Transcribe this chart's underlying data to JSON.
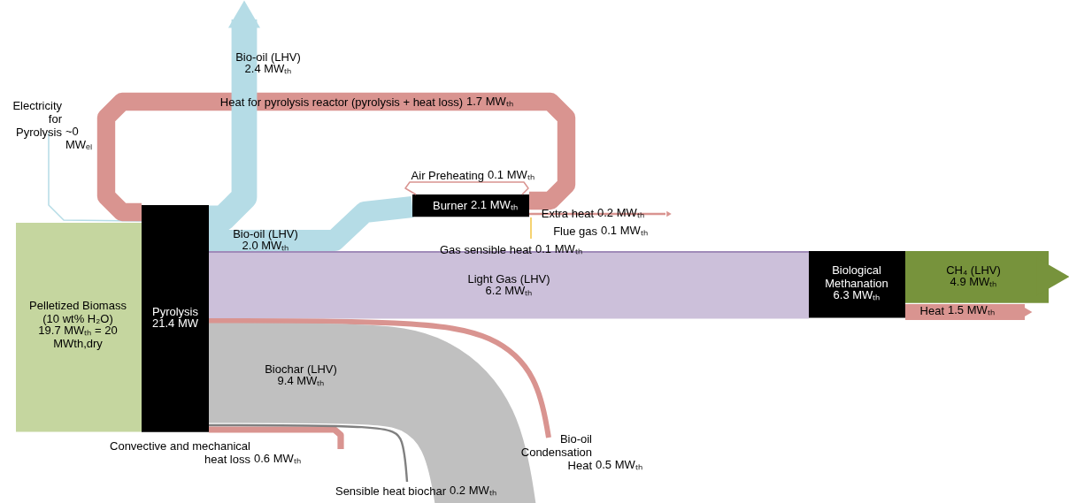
{
  "chart_data": {
    "type": "other",
    "categories": [
      "Pelletized Biomass\n(10 wt% H₂O)",
      "Electricity\nfor\nPyrolysis",
      "Pyrolysis",
      "Heat for pyrolysis reactor (pyrolysis + heat loss)",
      "Bio-oil (LHV)",
      "Bio-oil (LHV)",
      "Burner",
      "Air Preheating",
      "Extra heat",
      "Flue gas",
      "Gas sensible heat",
      "Light Gas (LHV)",
      "Biological\nMethanation",
      "CH₄ (LHV)",
      "Heat",
      "Bio-oil\nCondensation\nHeat",
      "Biochar (LHV)",
      "Convective and mechanical\nheat loss",
      "Sensible heat biochar"
    ],
    "values": [
      19.7,
      0,
      21.4,
      1.7,
      2.4,
      2.0,
      2.1,
      0.1,
      0.2,
      0.1,
      0.1,
      6.2,
      6.3,
      4.9,
      1.5,
      0.5,
      9.4,
      0.6,
      0.2
    ],
    "value_labels": [
      "19.7 MWₜₕ = 20\nMWth,dry",
      "~0\nMWₑₗ",
      "21.4 MW",
      "1.7 MWₜₕ",
      "2.4 MWₜₕ",
      "2.0 MWₜₕ",
      "2.1 MWₜₕ",
      "0.1 MWₜₕ",
      "0.2 MWₜₕ",
      "0.1 MWₜₕ",
      "0.1 MWₜₕ",
      "6.2 MWₜₕ",
      "6.3 MWₜₕ",
      "4.9 MWₜₕ",
      "1.5 MWₜₕ",
      "0.5 MWₜₕ",
      "9.4 MWₜₕ",
      "0.6 MWₜₕ",
      "0.2 MWₜₕ"
    ],
    "colors": [
      "#c5d69f",
      "#b5dce6",
      "#000000",
      "#d99490",
      "#b5dce6",
      "#b5dce6",
      "#000000",
      "#d99490",
      "#d99490",
      "#f2c443",
      "#8064a2",
      "#ccc0da",
      "#000000",
      "#77933c",
      "#d99490",
      "#d99490",
      "#c0c0c0",
      "#d99490",
      "#808080"
    ]
  }
}
